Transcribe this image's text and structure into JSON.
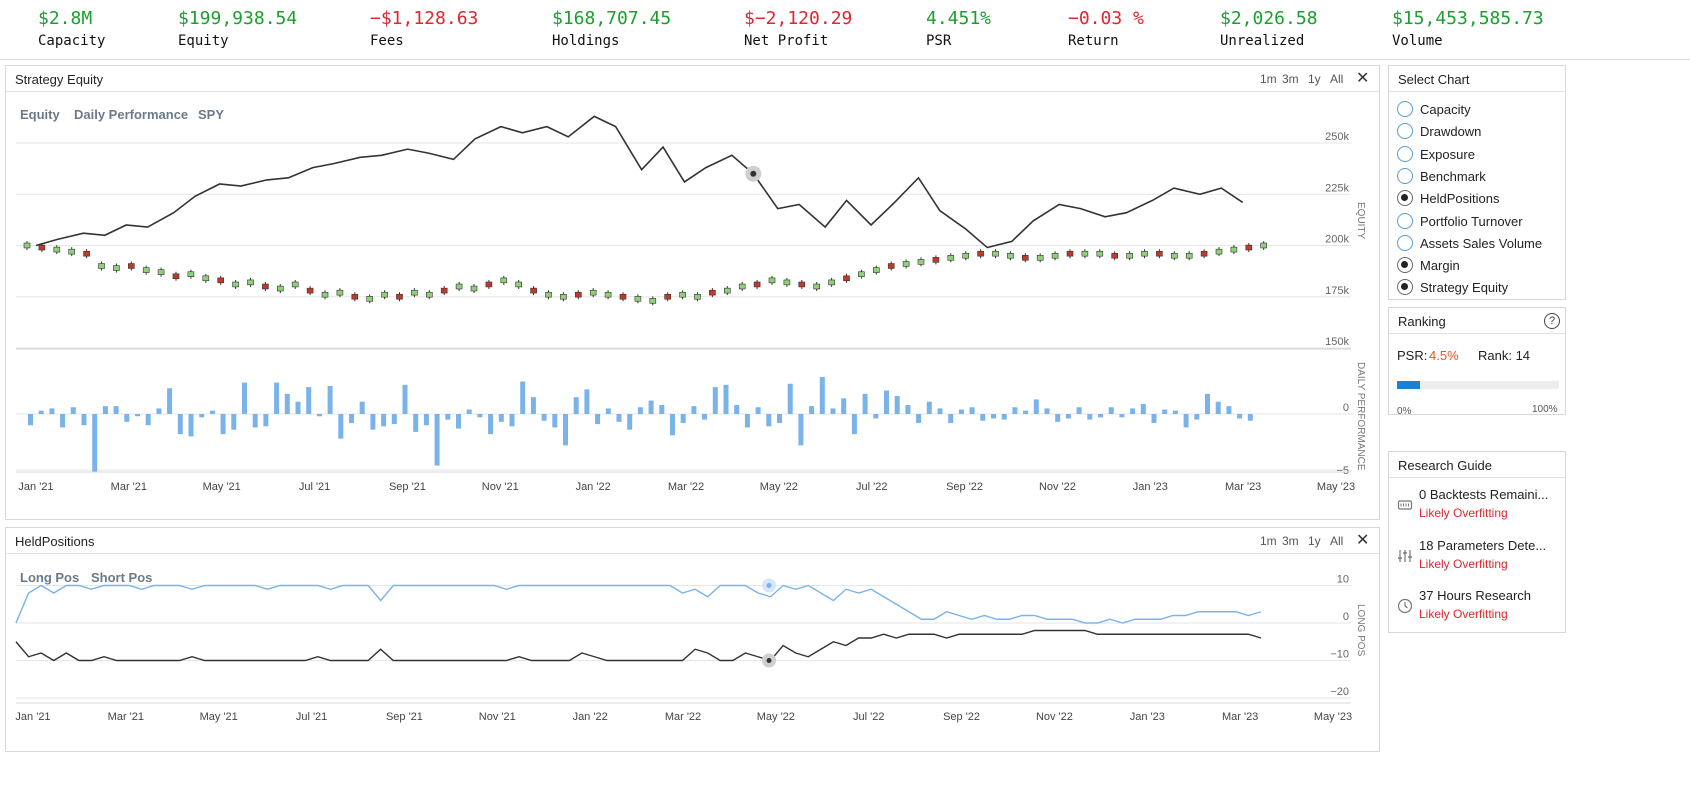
{
  "stats": [
    {
      "value": "$2.8M",
      "label": "Capacity",
      "tone": "pos"
    },
    {
      "value": "$199,938.54",
      "label": "Equity",
      "tone": "pos"
    },
    {
      "value": "−$1,128.63",
      "label": "Fees",
      "tone": "neg"
    },
    {
      "value": "$168,707.45",
      "label": "Holdings",
      "tone": "pos"
    },
    {
      "value": "$−2,120.29",
      "label": "Net Profit",
      "tone": "neg"
    },
    {
      "value": "4.451%",
      "label": "PSR",
      "tone": "pos"
    },
    {
      "value": "−0.03 %",
      "label": "Return",
      "tone": "neg"
    },
    {
      "value": "$2,026.58",
      "label": "Unrealized",
      "tone": "pos"
    },
    {
      "value": "$15,453,585.73",
      "label": "Volume",
      "tone": "pos"
    }
  ],
  "range_buttons": [
    "1m",
    "3m",
    "1y",
    "All"
  ],
  "close_glyph": "✕",
  "colors": {
    "positive": "#1aa02e",
    "negative": "#e0262f",
    "bar": "#7ab3ea",
    "line": "#333333",
    "long_line": "#7ab3ea",
    "candle_up": "#8fd07a",
    "candle_down": "#c0392b"
  },
  "equity_panel": {
    "title": "Strategy Equity",
    "legend": [
      "Equity",
      "Daily Performance",
      "SPY"
    ],
    "x_ticks": [
      "Jan '21",
      "Mar '21",
      "May '21",
      "Jul '21",
      "Sep '21",
      "Nov '21",
      "Jan '22",
      "Mar '22",
      "May '22",
      "Jul '22",
      "Sep '22",
      "Nov '22",
      "Jan '23",
      "Mar '23",
      "May '23"
    ],
    "equity_ticks": [
      "250k",
      "225k",
      "200k",
      "175k",
      "150k"
    ],
    "equity_axis_label": "EQUITY",
    "perf_ticks": [
      "0",
      "−5"
    ],
    "perf_axis_label": "DAILY PERFORMANCE"
  },
  "held_panel": {
    "title": "HeldPositions",
    "legend": [
      "Long Pos",
      "Short Pos"
    ],
    "x_ticks": [
      "Jan '21",
      "Mar '21",
      "May '21",
      "Jul '21",
      "Sep '21",
      "Nov '21",
      "Jan '22",
      "Mar '22",
      "May '22",
      "Jul '22",
      "Sep '22",
      "Nov '22",
      "Jan '23",
      "Mar '23",
      "May '23"
    ],
    "y_ticks": [
      "10",
      "0",
      "−10",
      "−20"
    ],
    "axis_label": "LONG POS"
  },
  "select_chart": {
    "title": "Select Chart",
    "options": [
      {
        "label": "Capacity",
        "checked": false
      },
      {
        "label": "Drawdown",
        "checked": false
      },
      {
        "label": "Exposure",
        "checked": false
      },
      {
        "label": "Benchmark",
        "checked": false
      },
      {
        "label": "HeldPositions",
        "checked": true
      },
      {
        "label": "Portfolio Turnover",
        "checked": false
      },
      {
        "label": "Assets Sales Volume",
        "checked": false
      },
      {
        "label": "Margin",
        "checked": true
      },
      {
        "label": "Strategy Equity",
        "checked": true
      }
    ]
  },
  "ranking": {
    "title": "Ranking",
    "help_glyph": "?",
    "psr_label": "PSR:",
    "psr_value": "4.5%",
    "rank_label": "Rank: 14",
    "progress_fraction": 0.14,
    "min_label": "0%",
    "max_label": "100%"
  },
  "research_guide": {
    "title": "Research Guide",
    "items": [
      {
        "icon": "backtest-icon",
        "label": "0 Backtests Remaini...",
        "status": "Likely Overfitting"
      },
      {
        "icon": "sliders-icon",
        "label": "18 Parameters Dete...",
        "status": "Likely Overfitting"
      },
      {
        "icon": "clock-icon",
        "label": "37 Hours Research",
        "status": "Likely Overfitting"
      }
    ]
  },
  "chart_data": [
    {
      "type": "line",
      "title": "Strategy Equity",
      "series": [
        {
          "name": "Equity",
          "x": [
            "2021-01-01",
            "2021-01-15",
            "2021-02-01",
            "2021-02-15",
            "2021-03-01",
            "2021-03-15",
            "2021-04-01",
            "2021-04-15",
            "2021-05-01",
            "2021-05-15",
            "2021-06-01",
            "2021-06-15",
            "2021-07-01",
            "2021-07-15",
            "2021-08-01",
            "2021-08-15",
            "2021-09-01",
            "2021-09-15",
            "2021-10-01",
            "2021-10-15",
            "2021-11-01",
            "2021-11-15",
            "2021-12-01",
            "2021-12-15",
            "2022-01-01",
            "2022-01-15",
            "2022-02-01",
            "2022-02-15",
            "2022-03-01",
            "2022-03-15",
            "2022-04-01",
            "2022-04-15",
            "2022-05-01",
            "2022-05-15",
            "2022-06-01",
            "2022-06-15",
            "2022-07-01",
            "2022-07-15",
            "2022-08-01",
            "2022-08-15",
            "2022-09-01",
            "2022-09-15",
            "2022-10-01",
            "2022-10-15",
            "2022-11-01",
            "2022-11-15",
            "2022-12-01",
            "2022-12-15",
            "2023-01-01",
            "2023-01-15",
            "2023-02-01",
            "2023-02-15",
            "2023-03-01"
          ],
          "values": [
            200,
            203,
            206,
            205,
            210,
            209,
            216,
            224,
            230,
            229,
            232,
            233,
            238,
            240,
            243,
            244,
            247,
            245,
            242,
            252,
            258,
            255,
            258,
            253,
            263,
            258,
            237,
            248,
            231,
            238,
            244,
            235,
            218,
            220,
            209,
            222,
            210,
            220,
            233,
            217,
            208,
            199,
            202,
            212,
            220,
            218,
            214,
            216,
            222,
            228,
            225,
            228,
            221
          ]
        }
      ],
      "ylim": [
        150,
        260
      ],
      "yticks": [
        150,
        175,
        200,
        225,
        250
      ]
    },
    {
      "type": "bar",
      "title": "Daily Performance",
      "values": [
        -1,
        0.3,
        0.5,
        -1.2,
        0.6,
        -1,
        -5.2,
        0.7,
        0.7,
        -0.7,
        -0.2,
        -1,
        0.5,
        2.3,
        -1.8,
        -2,
        -0.3,
        0.3,
        -1.8,
        -1.4,
        2.8,
        -1.2,
        -1.1,
        2.8,
        1.8,
        1.1,
        2.4,
        -0.2,
        2.5,
        -2.2,
        -0.8,
        1.1,
        -1.4,
        -1.1,
        -0.9,
        2.6,
        -1.6,
        -1,
        -4.6,
        -0.5,
        -1.3,
        0.4,
        -0.3,
        -1.8,
        -0.7,
        -1.1,
        2.9,
        1.5,
        -0.6,
        -1.2,
        -2.8,
        1.5,
        2.2,
        -0.9,
        0.5,
        -0.7,
        -1.4,
        0.6,
        1.2,
        0.8,
        -1.9,
        -0.8,
        0.7,
        -0.5,
        2.4,
        2.6,
        0.8,
        -1.2,
        0.6,
        -1.1,
        -0.8,
        2.7,
        -2.8,
        0.7,
        3.3,
        0.5,
        1.4,
        -1.8,
        1.8,
        -0.4,
        2.1,
        1.6,
        0.8,
        -0.8,
        1.1,
        0.5,
        -0.8,
        0.4,
        0.6,
        -0.6,
        -0.4,
        -0.5,
        0.6,
        0.3,
        1.3,
        0.5,
        -0.7,
        -0.4,
        0.6,
        -0.5,
        -0.3,
        0.6,
        -0.3,
        0.5,
        0.9,
        -0.8,
        0.4,
        0.3,
        -1.2,
        -0.5,
        1.8,
        1.1,
        0.7,
        -0.4,
        -0.6
      ],
      "yticks": [
        0,
        -5
      ]
    },
    {
      "type": "line",
      "title": "HeldPositions",
      "series": [
        {
          "name": "Long Pos",
          "values": [
            0,
            8,
            10,
            8,
            10,
            10,
            9,
            10,
            10,
            10,
            9,
            10,
            10,
            10,
            9,
            10,
            10,
            10,
            10,
            10,
            9,
            10,
            10,
            10,
            10,
            9,
            10,
            10,
            10,
            6,
            10,
            10,
            10,
            10,
            10,
            10,
            10,
            10,
            10,
            9,
            10,
            10,
            10,
            10,
            10,
            10,
            10,
            10,
            10,
            10,
            10,
            10,
            10,
            8,
            9,
            7,
            10,
            10,
            10,
            8,
            7,
            10,
            9,
            10,
            8,
            6,
            9,
            8,
            9,
            7,
            5,
            3,
            1,
            1,
            3,
            2,
            1,
            2,
            1,
            1,
            2,
            2,
            1,
            1,
            1,
            0,
            0,
            1,
            0,
            1,
            1,
            1,
            2,
            2,
            3,
            3,
            3,
            3,
            2,
            3
          ]
        },
        {
          "name": "Short Pos",
          "values": [
            -5,
            -9,
            -8,
            -10,
            -8,
            -10,
            -10,
            -9,
            -10,
            -10,
            -10,
            -10,
            -10,
            -10,
            -9,
            -10,
            -10,
            -10,
            -10,
            -10,
            -10,
            -10,
            -10,
            -10,
            -9,
            -10,
            -10,
            -10,
            -10,
            -7,
            -10,
            -10,
            -10,
            -10,
            -10,
            -10,
            -10,
            -10,
            -10,
            -10,
            -9,
            -10,
            -10,
            -10,
            -10,
            -8,
            -9,
            -10,
            -10,
            -10,
            -10,
            -10,
            -10,
            -10,
            -7,
            -8,
            -10,
            -10,
            -8,
            -9,
            -10,
            -6,
            -8,
            -9,
            -7,
            -5,
            -6,
            -4,
            -4,
            -3,
            -4,
            -3,
            -3,
            -3,
            -4,
            -3,
            -3,
            -3,
            -3,
            -3,
            -3,
            -2,
            -2,
            -2,
            -2,
            -2,
            -3,
            -3,
            -3,
            -3,
            -3,
            -3,
            -3,
            -3,
            -3,
            -3,
            -3,
            -3,
            -3,
            -4
          ]
        }
      ],
      "yticks": [
        10,
        0,
        -10,
        -20
      ]
    }
  ]
}
